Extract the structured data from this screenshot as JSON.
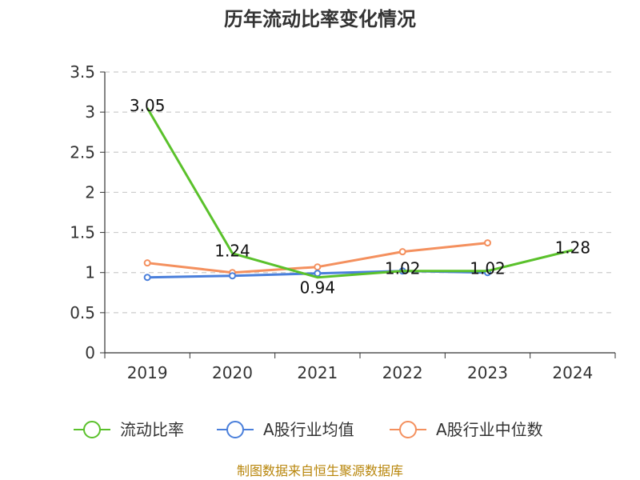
{
  "chart_data": {
    "type": "line",
    "title": "历年流动比率变化情况",
    "categories": [
      "2019",
      "2020",
      "2021",
      "2022",
      "2023",
      "2024"
    ],
    "ylim": [
      0,
      3.5
    ],
    "yticks": [
      "0",
      "0.5",
      "1",
      "1.5",
      "2",
      "2.5",
      "3",
      "3.5"
    ],
    "grid": true,
    "legend_position": "bottom",
    "series": [
      {
        "name": "流动比率",
        "color": "#5ac12b",
        "values": [
          3.05,
          1.24,
          0.94,
          1.02,
          1.02,
          1.28
        ],
        "labels": [
          "3.05",
          "1.24",
          "0.94",
          "1.02",
          "1.02",
          "1.28"
        ],
        "show_markers": false
      },
      {
        "name": "A股行业均值",
        "color": "#4a7fdb",
        "values": [
          0.94,
          0.96,
          0.99,
          1.02,
          1.0,
          null
        ],
        "labels": [],
        "show_markers": true
      },
      {
        "name": "A股行业中位数",
        "color": "#f4905e",
        "values": [
          1.12,
          1.0,
          1.07,
          1.26,
          1.37,
          null
        ],
        "labels": [],
        "show_markers": true
      }
    ]
  },
  "source_text": "制图数据来自恒生聚源数据库"
}
